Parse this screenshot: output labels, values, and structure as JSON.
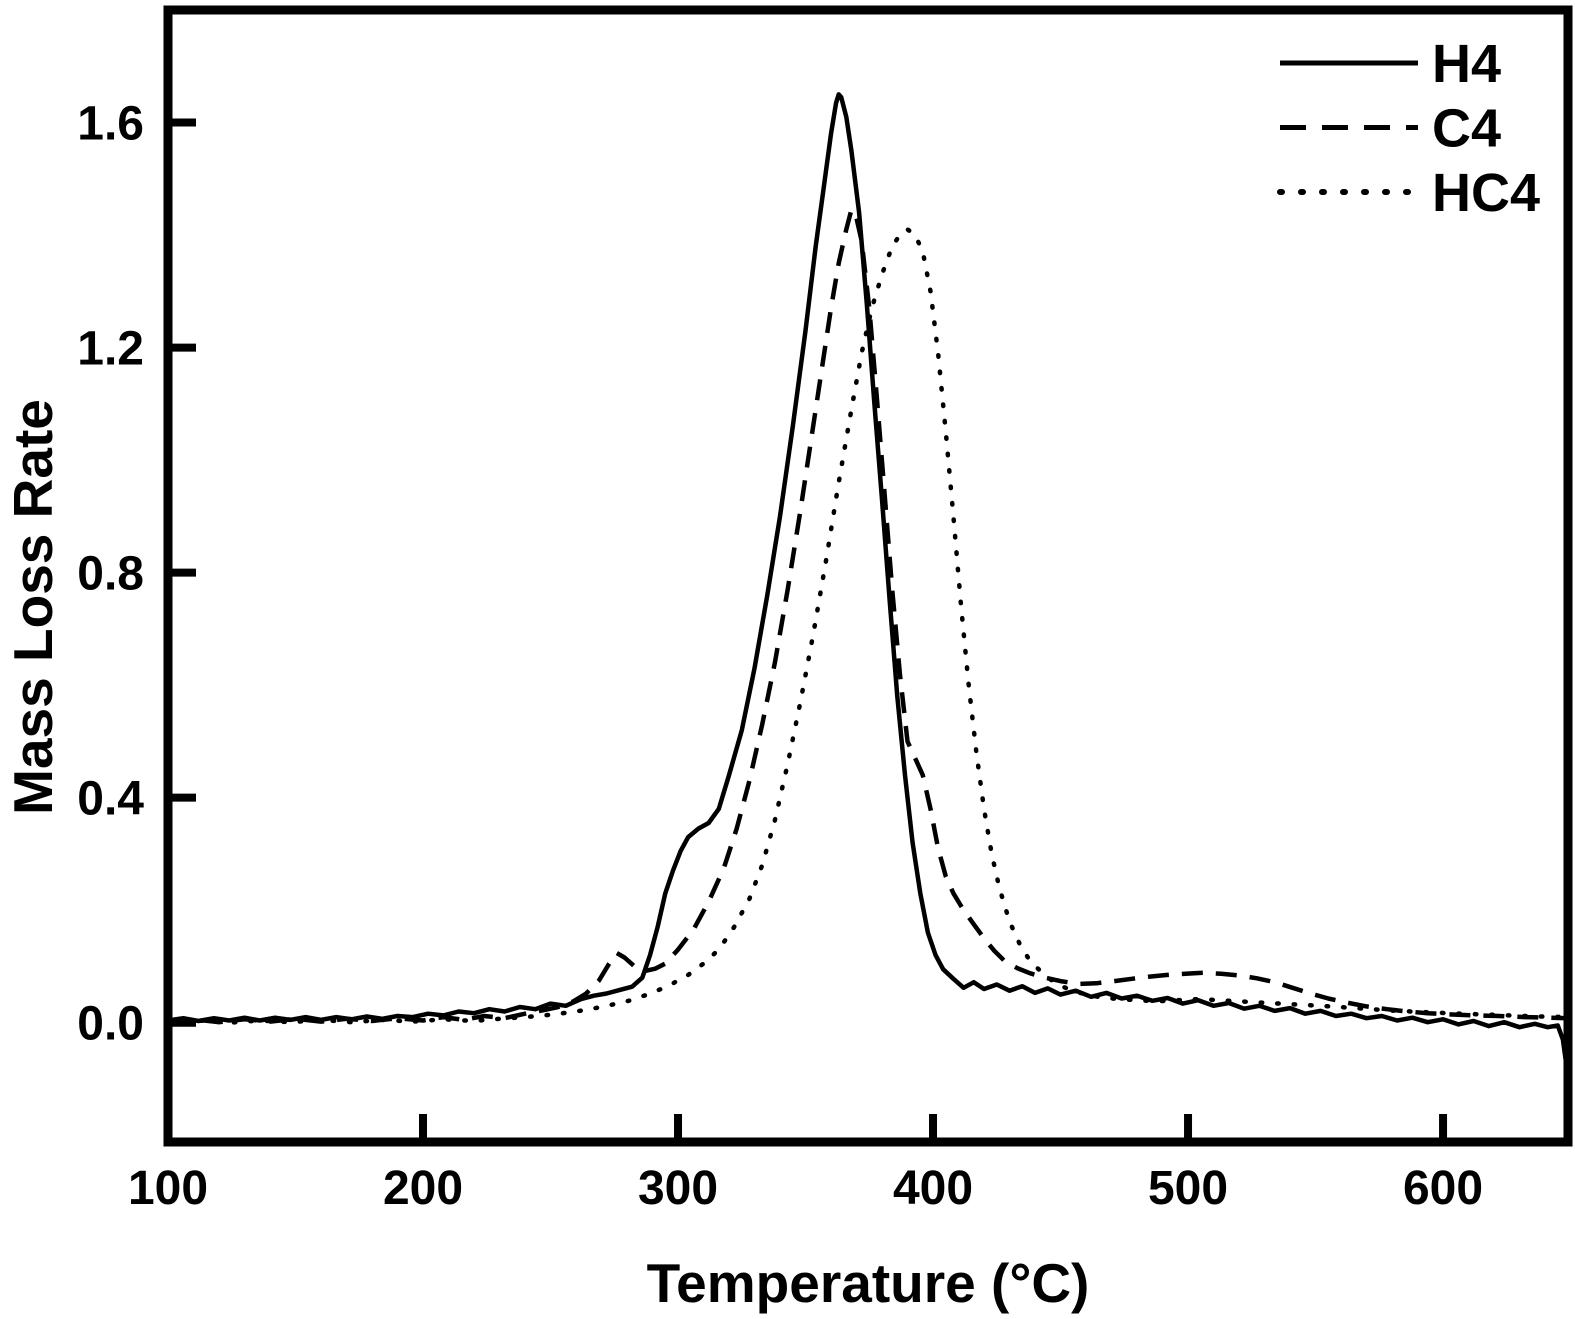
{
  "chart_data": {
    "type": "line",
    "xlabel": "Temperature (°C)",
    "ylabel": "Mass Loss Rate",
    "xlim": [
      100,
      649
    ],
    "ylim": [
      -0.212,
      1.8
    ],
    "x_ticks": [
      100,
      200,
      300,
      400,
      500,
      600
    ],
    "y_ticks": [
      "0.0",
      "0.4",
      "0.8",
      "1.2",
      "1.6"
    ],
    "grid": false,
    "legend_position": "top-right",
    "line_color": "#000000",
    "background": "#ffffff",
    "series": [
      {
        "name": "H4",
        "style": "solid",
        "peak": {
          "temperature": 363,
          "value": 1.65
        },
        "points": [
          [
            100,
            0.004
          ],
          [
            106,
            0.008
          ],
          [
            112,
            0.003
          ],
          [
            118,
            0.008
          ],
          [
            124,
            0.004
          ],
          [
            130,
            0.009
          ],
          [
            136,
            0.004
          ],
          [
            142,
            0.009
          ],
          [
            148,
            0.005
          ],
          [
            154,
            0.01
          ],
          [
            160,
            0.005
          ],
          [
            166,
            0.01
          ],
          [
            172,
            0.006
          ],
          [
            178,
            0.011
          ],
          [
            184,
            0.007
          ],
          [
            190,
            0.012
          ],
          [
            196,
            0.01
          ],
          [
            202,
            0.016
          ],
          [
            208,
            0.013
          ],
          [
            214,
            0.02
          ],
          [
            220,
            0.017
          ],
          [
            226,
            0.024
          ],
          [
            232,
            0.02
          ],
          [
            238,
            0.028
          ],
          [
            244,
            0.024
          ],
          [
            250,
            0.034
          ],
          [
            256,
            0.03
          ],
          [
            262,
            0.042
          ],
          [
            267,
            0.048
          ],
          [
            272,
            0.052
          ],
          [
            277,
            0.058
          ],
          [
            282,
            0.064
          ],
          [
            286,
            0.08
          ],
          [
            289,
            0.12
          ],
          [
            292,
            0.17
          ],
          [
            295,
            0.23
          ],
          [
            298,
            0.27
          ],
          [
            301,
            0.305
          ],
          [
            304,
            0.33
          ],
          [
            308,
            0.345
          ],
          [
            312,
            0.355
          ],
          [
            316,
            0.38
          ],
          [
            320,
            0.44
          ],
          [
            325,
            0.52
          ],
          [
            330,
            0.63
          ],
          [
            335,
            0.76
          ],
          [
            340,
            0.9
          ],
          [
            345,
            1.06
          ],
          [
            350,
            1.23
          ],
          [
            354,
            1.38
          ],
          [
            357,
            1.48
          ],
          [
            360,
            1.58
          ],
          [
            362,
            1.635
          ],
          [
            363,
            1.65
          ],
          [
            364,
            1.645
          ],
          [
            366,
            1.61
          ],
          [
            368,
            1.55
          ],
          [
            371,
            1.44
          ],
          [
            374,
            1.28
          ],
          [
            377,
            1.1
          ],
          [
            380,
            0.93
          ],
          [
            383,
            0.75
          ],
          [
            386,
            0.58
          ],
          [
            389,
            0.44
          ],
          [
            392,
            0.32
          ],
          [
            395,
            0.23
          ],
          [
            398,
            0.16
          ],
          [
            401,
            0.12
          ],
          [
            404,
            0.095
          ],
          [
            408,
            0.078
          ],
          [
            412,
            0.062
          ],
          [
            416,
            0.072
          ],
          [
            420,
            0.06
          ],
          [
            425,
            0.068
          ],
          [
            430,
            0.057
          ],
          [
            435,
            0.065
          ],
          [
            440,
            0.053
          ],
          [
            445,
            0.061
          ],
          [
            450,
            0.05
          ],
          [
            456,
            0.057
          ],
          [
            462,
            0.046
          ],
          [
            468,
            0.053
          ],
          [
            474,
            0.043
          ],
          [
            480,
            0.048
          ],
          [
            486,
            0.039
          ],
          [
            492,
            0.044
          ],
          [
            498,
            0.034
          ],
          [
            504,
            0.04
          ],
          [
            510,
            0.03
          ],
          [
            516,
            0.035
          ],
          [
            522,
            0.025
          ],
          [
            528,
            0.03
          ],
          [
            534,
            0.021
          ],
          [
            540,
            0.026
          ],
          [
            546,
            0.016
          ],
          [
            552,
            0.021
          ],
          [
            558,
            0.012
          ],
          [
            564,
            0.016
          ],
          [
            570,
            0.008
          ],
          [
            576,
            0.012
          ],
          [
            582,
            0.004
          ],
          [
            588,
            0.009
          ],
          [
            594,
            0.001
          ],
          [
            600,
            0.006
          ],
          [
            606,
            -0.003
          ],
          [
            612,
            0.003
          ],
          [
            618,
            -0.006
          ],
          [
            624,
            0.001
          ],
          [
            630,
            -0.008
          ],
          [
            636,
            -0.002
          ],
          [
            641,
            -0.008
          ],
          [
            645,
            -0.005
          ],
          [
            647,
            -0.03
          ],
          [
            648.5,
            -0.08
          ]
        ]
      },
      {
        "name": "C4",
        "style": "dashed",
        "peak": {
          "temperature": 368,
          "value": 1.45
        },
        "points": [
          [
            100,
            0.002
          ],
          [
            110,
            0.006
          ],
          [
            120,
            0.001
          ],
          [
            130,
            0.006
          ],
          [
            140,
            0.002
          ],
          [
            150,
            0.007
          ],
          [
            160,
            0.002
          ],
          [
            170,
            0.007
          ],
          [
            180,
            0.003
          ],
          [
            190,
            0.008
          ],
          [
            200,
            0.004
          ],
          [
            208,
            0.01
          ],
          [
            216,
            0.005
          ],
          [
            224,
            0.012
          ],
          [
            232,
            0.008
          ],
          [
            240,
            0.016
          ],
          [
            247,
            0.022
          ],
          [
            253,
            0.028
          ],
          [
            259,
            0.038
          ],
          [
            264,
            0.052
          ],
          [
            269,
            0.075
          ],
          [
            273,
            0.105
          ],
          [
            276,
            0.124
          ],
          [
            279,
            0.116
          ],
          [
            283,
            0.1
          ],
          [
            287,
            0.092
          ],
          [
            291,
            0.096
          ],
          [
            295,
            0.105
          ],
          [
            300,
            0.13
          ],
          [
            306,
            0.165
          ],
          [
            312,
            0.215
          ],
          [
            318,
            0.275
          ],
          [
            323,
            0.345
          ],
          [
            328,
            0.43
          ],
          [
            333,
            0.53
          ],
          [
            338,
            0.64
          ],
          [
            343,
            0.77
          ],
          [
            348,
            0.91
          ],
          [
            352,
            1.03
          ],
          [
            356,
            1.15
          ],
          [
            360,
            1.27
          ],
          [
            363,
            1.35
          ],
          [
            366,
            1.41
          ],
          [
            368,
            1.445
          ],
          [
            370,
            1.43
          ],
          [
            372,
            1.39
          ],
          [
            375,
            1.27
          ],
          [
            378,
            1.11
          ],
          [
            381,
            0.94
          ],
          [
            384,
            0.77
          ],
          [
            387,
            0.62
          ],
          [
            390,
            0.5
          ],
          [
            393,
            0.47
          ],
          [
            396,
            0.44
          ],
          [
            399,
            0.38
          ],
          [
            402,
            0.31
          ],
          [
            405,
            0.26
          ],
          [
            408,
            0.23
          ],
          [
            412,
            0.2
          ],
          [
            416,
            0.175
          ],
          [
            420,
            0.15
          ],
          [
            424,
            0.128
          ],
          [
            428,
            0.11
          ],
          [
            433,
            0.097
          ],
          [
            438,
            0.088
          ],
          [
            444,
            0.08
          ],
          [
            450,
            0.074
          ],
          [
            457,
            0.069
          ],
          [
            464,
            0.07
          ],
          [
            471,
            0.074
          ],
          [
            478,
            0.078
          ],
          [
            485,
            0.082
          ],
          [
            492,
            0.085
          ],
          [
            499,
            0.087
          ],
          [
            506,
            0.089
          ],
          [
            513,
            0.087
          ],
          [
            520,
            0.084
          ],
          [
            527,
            0.079
          ],
          [
            534,
            0.072
          ],
          [
            541,
            0.062
          ],
          [
            548,
            0.052
          ],
          [
            555,
            0.043
          ],
          [
            562,
            0.036
          ],
          [
            570,
            0.029
          ],
          [
            578,
            0.024
          ],
          [
            586,
            0.02
          ],
          [
            594,
            0.017
          ],
          [
            602,
            0.015
          ],
          [
            612,
            0.013
          ],
          [
            622,
            0.012
          ],
          [
            632,
            0.01
          ],
          [
            642,
            0.009
          ],
          [
            649,
            0.008
          ]
        ]
      },
      {
        "name": "HC4",
        "style": "dotted",
        "peak": {
          "temperature": 388,
          "value": 1.41
        },
        "points": [
          [
            100,
            0.001
          ],
          [
            112,
            0.004
          ],
          [
            124,
            0.0
          ],
          [
            136,
            0.004
          ],
          [
            148,
            0.001
          ],
          [
            160,
            0.005
          ],
          [
            172,
            0.001
          ],
          [
            184,
            0.005
          ],
          [
            196,
            0.002
          ],
          [
            208,
            0.006
          ],
          [
            220,
            0.003
          ],
          [
            230,
            0.007
          ],
          [
            240,
            0.01
          ],
          [
            250,
            0.014
          ],
          [
            260,
            0.02
          ],
          [
            270,
            0.028
          ],
          [
            280,
            0.038
          ],
          [
            288,
            0.05
          ],
          [
            296,
            0.065
          ],
          [
            304,
            0.085
          ],
          [
            310,
            0.105
          ],
          [
            316,
            0.13
          ],
          [
            322,
            0.17
          ],
          [
            328,
            0.22
          ],
          [
            333,
            0.28
          ],
          [
            338,
            0.36
          ],
          [
            343,
            0.46
          ],
          [
            348,
            0.57
          ],
          [
            353,
            0.69
          ],
          [
            358,
            0.82
          ],
          [
            363,
            0.96
          ],
          [
            368,
            1.09
          ],
          [
            372,
            1.19
          ],
          [
            376,
            1.27
          ],
          [
            380,
            1.33
          ],
          [
            384,
            1.38
          ],
          [
            387,
            1.4
          ],
          [
            390,
            1.41
          ],
          [
            393,
            1.4
          ],
          [
            396,
            1.37
          ],
          [
            399,
            1.3
          ],
          [
            402,
            1.19
          ],
          [
            405,
            1.05
          ],
          [
            408,
            0.9
          ],
          [
            411,
            0.74
          ],
          [
            414,
            0.6
          ],
          [
            417,
            0.48
          ],
          [
            420,
            0.38
          ],
          [
            423,
            0.3
          ],
          [
            426,
            0.24
          ],
          [
            430,
            0.18
          ],
          [
            434,
            0.14
          ],
          [
            438,
            0.11
          ],
          [
            443,
            0.088
          ],
          [
            448,
            0.07
          ],
          [
            454,
            0.058
          ],
          [
            460,
            0.05
          ],
          [
            466,
            0.045
          ],
          [
            473,
            0.042
          ],
          [
            480,
            0.04
          ],
          [
            488,
            0.038
          ],
          [
            496,
            0.04
          ],
          [
            504,
            0.042
          ],
          [
            512,
            0.04
          ],
          [
            520,
            0.038
          ],
          [
            528,
            0.036
          ],
          [
            536,
            0.034
          ],
          [
            544,
            0.032
          ],
          [
            552,
            0.03
          ],
          [
            562,
            0.027
          ],
          [
            572,
            0.024
          ],
          [
            582,
            0.021
          ],
          [
            592,
            0.019
          ],
          [
            602,
            0.017
          ],
          [
            614,
            0.015
          ],
          [
            626,
            0.013
          ],
          [
            638,
            0.011
          ],
          [
            649,
            0.01
          ]
        ]
      }
    ]
  }
}
